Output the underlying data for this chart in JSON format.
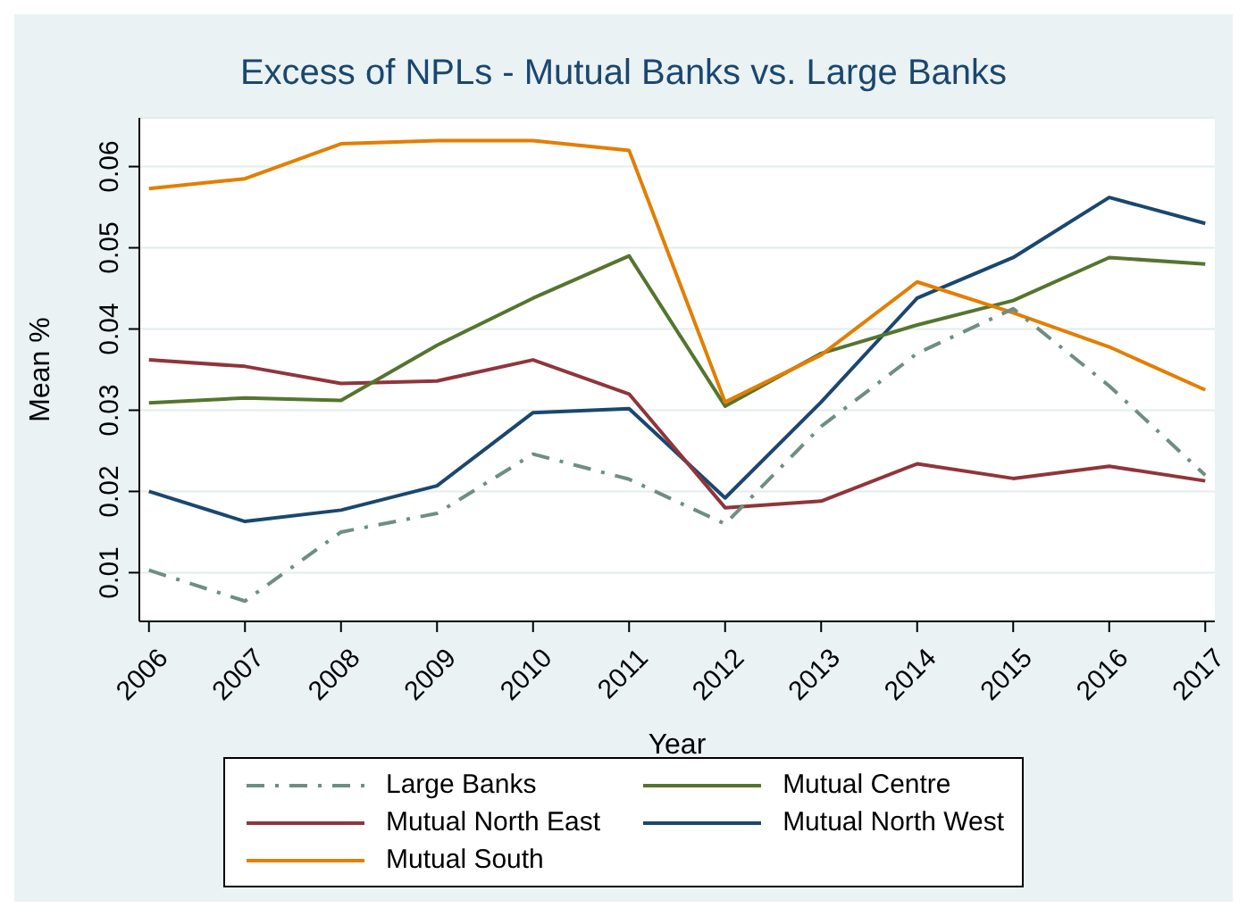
{
  "chart_data": {
    "type": "line",
    "title": "Excess of NPLs - Mutual Banks vs. Large Banks",
    "xlabel": "Year",
    "ylabel": "Mean %",
    "categories": [
      "2006",
      "2007",
      "2008",
      "2009",
      "2010",
      "2011",
      "2012",
      "2013",
      "2014",
      "2015",
      "2016",
      "2017"
    ],
    "series": [
      {
        "name": "Mutual North West",
        "color": "#1a476f",
        "values": [
          0.02,
          0.0163,
          0.0177,
          0.0207,
          0.0297,
          0.0302,
          0.0192,
          0.031,
          0.0438,
          0.0488,
          0.0562,
          0.053
        ]
      },
      {
        "name": "Mutual North East",
        "color": "#90353b",
        "values": [
          0.0362,
          0.0354,
          0.0333,
          0.0336,
          0.0362,
          0.032,
          0.018,
          0.0188,
          0.0234,
          0.0216,
          0.0231,
          0.0213
        ]
      },
      {
        "name": "Mutual Centre",
        "color": "#55752f",
        "values": [
          0.0309,
          0.0315,
          0.0312,
          0.038,
          0.0438,
          0.049,
          0.0305,
          0.037,
          0.0405,
          0.0435,
          0.0488,
          0.048
        ]
      },
      {
        "name": "Mutual South",
        "color": "#e37e00",
        "values": [
          0.0573,
          0.0585,
          0.0628,
          0.0632,
          0.0632,
          0.062,
          0.031,
          0.0368,
          0.0458,
          0.042,
          0.0378,
          0.0325
        ]
      },
      {
        "name": "Large Banks",
        "color": "#6e8e84",
        "line_style": "dashed",
        "values": [
          0.0103,
          0.0065,
          0.015,
          0.0173,
          0.0246,
          0.0215,
          0.016,
          0.028,
          0.037,
          0.0425,
          0.033,
          0.022
        ]
      }
    ],
    "ylim": [
      0.004,
      0.066
    ],
    "yticks": [
      0.01,
      0.02,
      0.03,
      0.04,
      0.05,
      0.06
    ],
    "grid": "y",
    "legend": "bottom",
    "marker": "none",
    "line_style": "solid"
  }
}
